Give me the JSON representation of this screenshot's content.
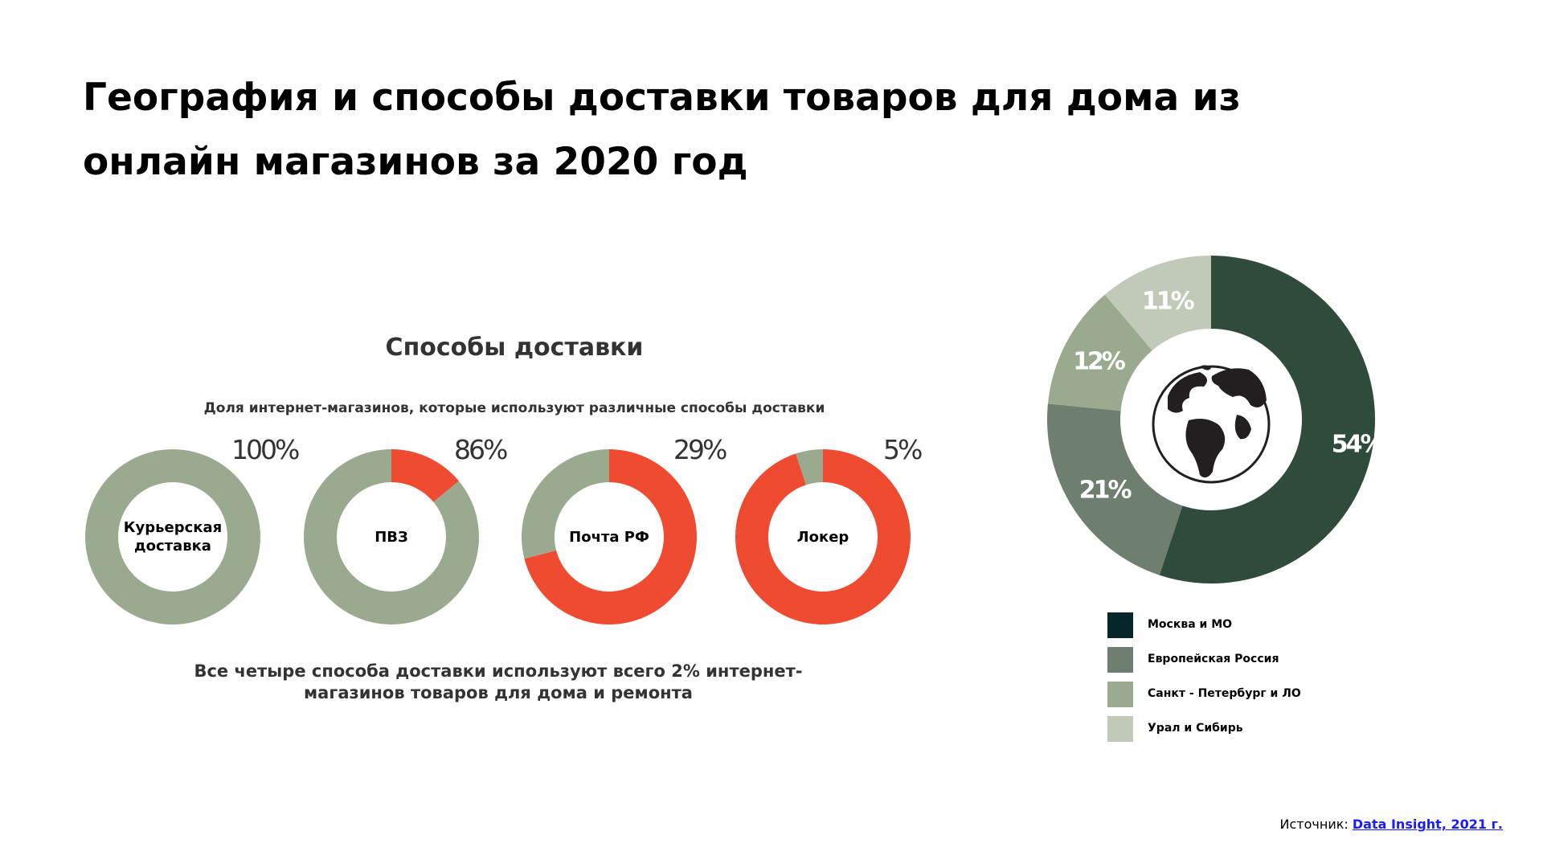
{
  "title": "География и способы доставки товаров для дома из онлайн магазинов за 2020 год",
  "methods_title": "Способы доставки",
  "methods_subtitle": "Доля интернет-магазинов, которые используют различные способы доставки",
  "note": "Все четыре способа доставки используют всего 2% интернет-магазинов товаров для дома и ремонта",
  "colors": {
    "donut_base": "#9aaa8f",
    "donut_highlight": "#ee4b30",
    "moscow": "#2e4b3b",
    "european": "#6e7f70",
    "spb": "#9aaa8f",
    "ural": "#c1cab9",
    "legend_moscow": "#05272a"
  },
  "chart_data": [
    {
      "type": "pie",
      "subtype": "donut",
      "title": "Способы доставки",
      "categories": [
        "Курьерская доставка",
        "ПВЗ",
        "Почта РФ",
        "Локер"
      ],
      "values": [
        100,
        86,
        29,
        5
      ],
      "value_labels": [
        "100%",
        "86%",
        "29%",
        "5%"
      ],
      "unit": "%"
    },
    {
      "type": "pie",
      "subtype": "donut",
      "title": "",
      "categories": [
        "Москва и МО",
        "Европейская Россия",
        "Санкт - Петербург и ЛО",
        "Урал и Сибирь"
      ],
      "values": [
        54,
        21,
        12,
        11
      ],
      "value_labels": [
        "54%",
        "21%",
        "12%",
        "11%"
      ],
      "center_icon": "globe-icon"
    }
  ],
  "legend": {
    "items": [
      {
        "label": "Москва и МО"
      },
      {
        "label": "Европейская  Россия"
      },
      {
        "label": "Санкт - Петербург и ЛО"
      },
      {
        "label": "Урал и Сибирь"
      }
    ]
  },
  "source": {
    "label": "Источник:",
    "link_text": "Data Insight, 2021 г."
  }
}
